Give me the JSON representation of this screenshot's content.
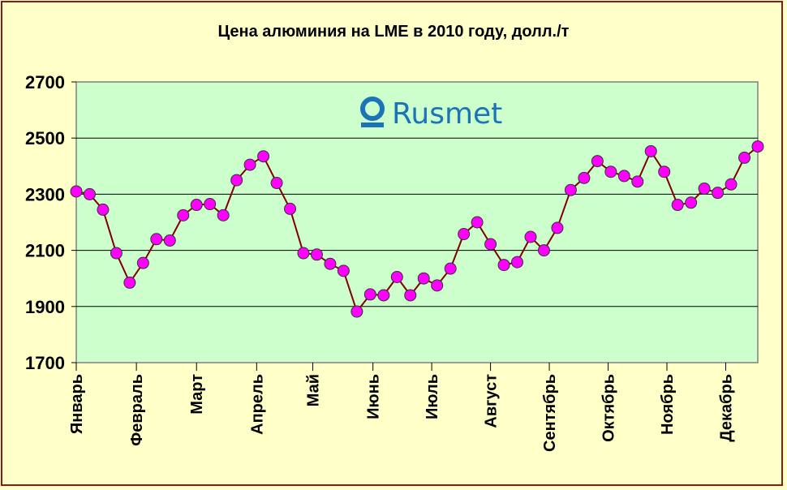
{
  "chart_data": {
    "type": "line",
    "title": "Цена алюминия на LME в 2010 году, долл./т",
    "watermark": "Rusmet",
    "ylim": [
      1700,
      2700
    ],
    "y_ticks": [
      1700,
      1900,
      2100,
      2300,
      2500,
      2700
    ],
    "x_labels": [
      "Январь",
      "Февраль",
      "Март",
      "Апрель",
      "Май",
      "Июнь",
      "Июль",
      "Август",
      "Сентябрь",
      "Октябрь",
      "Ноябрь",
      "Декабрь"
    ],
    "grid": true,
    "colors": {
      "plot_bg": "#ccffcc",
      "page_bg": "#ffffc8",
      "line": "#800000",
      "marker": "#ff00ff",
      "border": "#8b1a1a"
    },
    "series": [
      {
        "values": [
          2310,
          2300,
          2245,
          2090,
          1985,
          2055,
          2140,
          2135,
          2225,
          2262,
          2265,
          2225,
          2350,
          2405,
          2435,
          2340,
          2248,
          2090,
          2085,
          2052,
          2027,
          1882,
          1943,
          1940,
          2005,
          1940,
          2000,
          1975,
          2035,
          2158,
          2200,
          2122,
          2048,
          2058,
          2148,
          2100,
          2180,
          2315,
          2358,
          2418,
          2380,
          2365,
          2345,
          2453,
          2380,
          2262,
          2270,
          2320,
          2305,
          2335,
          2430,
          2470
        ]
      }
    ]
  }
}
